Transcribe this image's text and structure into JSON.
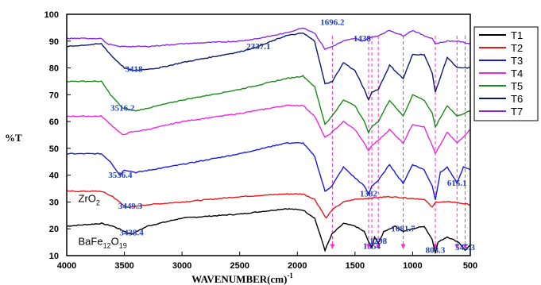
{
  "chart_data": {
    "type": "line",
    "xlabel": "WAVENUMBER(cm)",
    "xlabel_superscript": "-1",
    "ylabel": "%T",
    "xlim": [
      4000,
      500
    ],
    "ylim": [
      10,
      100
    ],
    "x_ticks": [
      4000,
      3500,
      3000,
      2500,
      2000,
      1500,
      1000,
      500
    ],
    "y_ticks": [
      10,
      20,
      30,
      40,
      50,
      60,
      70,
      80,
      90,
      100
    ],
    "grid": false,
    "legend_position": "top-right, outside plot",
    "series": [
      {
        "name": "T1",
        "color": "#000000",
        "points": [
          [
            4000,
            21
          ],
          [
            3700,
            22
          ],
          [
            3600,
            21
          ],
          [
            3470,
            18.5
          ],
          [
            3438,
            18
          ],
          [
            3300,
            21
          ],
          [
            3000,
            24
          ],
          [
            2500,
            25.5
          ],
          [
            2100,
            27.5
          ],
          [
            1950,
            27
          ],
          [
            1850,
            24
          ],
          [
            1760,
            12
          ],
          [
            1700,
            18
          ],
          [
            1600,
            22
          ],
          [
            1500,
            21
          ],
          [
            1420,
            19
          ],
          [
            1380,
            15
          ],
          [
            1354,
            13
          ],
          [
            1330,
            17
          ],
          [
            1298,
            14.5
          ],
          [
            1250,
            19
          ],
          [
            1150,
            21
          ],
          [
            1082,
            19
          ],
          [
            1000,
            20
          ],
          [
            900,
            21
          ],
          [
            830,
            16
          ],
          [
            803,
            11
          ],
          [
            780,
            15
          ],
          [
            700,
            17
          ],
          [
            600,
            15
          ],
          [
            545,
            12
          ],
          [
            500,
            14
          ]
        ]
      },
      {
        "name": "T2",
        "color": "#e3191c",
        "points": [
          [
            4000,
            34
          ],
          [
            3700,
            34
          ],
          [
            3600,
            32
          ],
          [
            3500,
            28.5
          ],
          [
            3449,
            28
          ],
          [
            3300,
            29
          ],
          [
            3000,
            30
          ],
          [
            2500,
            32
          ],
          [
            2100,
            33
          ],
          [
            1950,
            33
          ],
          [
            1850,
            31
          ],
          [
            1750,
            24
          ],
          [
            1700,
            27
          ],
          [
            1600,
            30
          ],
          [
            1500,
            31
          ],
          [
            1200,
            32
          ],
          [
            900,
            31
          ],
          [
            830,
            28
          ],
          [
            800,
            30
          ],
          [
            650,
            30
          ],
          [
            500,
            29
          ]
        ]
      },
      {
        "name": "T3",
        "color": "#1a1adc",
        "points": [
          [
            4000,
            48
          ],
          [
            3700,
            48
          ],
          [
            3620,
            45
          ],
          [
            3540,
            40
          ],
          [
            3500,
            42
          ],
          [
            3400,
            41
          ],
          [
            3000,
            44
          ],
          [
            2500,
            48
          ],
          [
            2100,
            52
          ],
          [
            1950,
            52
          ],
          [
            1850,
            47
          ],
          [
            1760,
            34
          ],
          [
            1700,
            36
          ],
          [
            1600,
            43
          ],
          [
            1500,
            39
          ],
          [
            1420,
            36
          ],
          [
            1382,
            33
          ],
          [
            1354,
            36
          ],
          [
            1298,
            38
          ],
          [
            1200,
            44
          ],
          [
            1120,
            39
          ],
          [
            1082,
            37
          ],
          [
            1000,
            44
          ],
          [
            900,
            42
          ],
          [
            830,
            36
          ],
          [
            803,
            31
          ],
          [
            760,
            41
          ],
          [
            700,
            43
          ],
          [
            615,
            37
          ],
          [
            560,
            43
          ],
          [
            500,
            42
          ]
        ]
      },
      {
        "name": "T4",
        "color": "#e82ad8",
        "points": [
          [
            4000,
            62
          ],
          [
            3700,
            62
          ],
          [
            3620,
            59
          ],
          [
            3516,
            55
          ],
          [
            3450,
            56
          ],
          [
            3300,
            57
          ],
          [
            3000,
            60
          ],
          [
            2500,
            63
          ],
          [
            2100,
            66
          ],
          [
            1950,
            66
          ],
          [
            1850,
            62
          ],
          [
            1760,
            54
          ],
          [
            1700,
            56
          ],
          [
            1600,
            60
          ],
          [
            1500,
            57
          ],
          [
            1420,
            52
          ],
          [
            1382,
            49
          ],
          [
            1354,
            51
          ],
          [
            1298,
            53
          ],
          [
            1200,
            57
          ],
          [
            1082,
            52
          ],
          [
            1000,
            59
          ],
          [
            900,
            58
          ],
          [
            830,
            51
          ],
          [
            803,
            48
          ],
          [
            700,
            56
          ],
          [
            615,
            52
          ],
          [
            500,
            57
          ]
        ]
      },
      {
        "name": "T5",
        "color": "#1a8a1a",
        "points": [
          [
            4000,
            75
          ],
          [
            3700,
            75
          ],
          [
            3620,
            70
          ],
          [
            3516,
            65
          ],
          [
            3400,
            64
          ],
          [
            3000,
            68
          ],
          [
            2500,
            72
          ],
          [
            2100,
            76
          ],
          [
            1950,
            77
          ],
          [
            1850,
            73
          ],
          [
            1760,
            59
          ],
          [
            1700,
            62
          ],
          [
            1600,
            68
          ],
          [
            1500,
            66
          ],
          [
            1420,
            60
          ],
          [
            1382,
            56
          ],
          [
            1354,
            58
          ],
          [
            1298,
            60
          ],
          [
            1200,
            68
          ],
          [
            1082,
            62
          ],
          [
            1000,
            70
          ],
          [
            900,
            68
          ],
          [
            830,
            63
          ],
          [
            803,
            58
          ],
          [
            700,
            66
          ],
          [
            615,
            62
          ],
          [
            500,
            64
          ]
        ]
      },
      {
        "name": "T6",
        "color": "#0d1a6e",
        "points": [
          [
            4000,
            88
          ],
          [
            3700,
            89
          ],
          [
            3600,
            84
          ],
          [
            3500,
            80
          ],
          [
            3418,
            79
          ],
          [
            3200,
            80
          ],
          [
            3000,
            82
          ],
          [
            2500,
            86
          ],
          [
            2337,
            88
          ],
          [
            2100,
            92
          ],
          [
            1950,
            93
          ],
          [
            1850,
            90
          ],
          [
            1760,
            74
          ],
          [
            1696,
            75
          ],
          [
            1600,
            82
          ],
          [
            1500,
            79
          ],
          [
            1420,
            72
          ],
          [
            1382,
            68
          ],
          [
            1354,
            71
          ],
          [
            1298,
            72
          ],
          [
            1200,
            81
          ],
          [
            1082,
            76
          ],
          [
            1000,
            85
          ],
          [
            900,
            85
          ],
          [
            830,
            78
          ],
          [
            803,
            71
          ],
          [
            700,
            84
          ],
          [
            615,
            80
          ],
          [
            500,
            80
          ]
        ]
      },
      {
        "name": "T7",
        "color": "#8a2be2",
        "points": [
          [
            4000,
            91
          ],
          [
            3700,
            91
          ],
          [
            3650,
            89
          ],
          [
            3550,
            88
          ],
          [
            3300,
            88
          ],
          [
            3000,
            89
          ],
          [
            2500,
            90
          ],
          [
            2337,
            91
          ],
          [
            2100,
            93
          ],
          [
            1950,
            95
          ],
          [
            1850,
            93
          ],
          [
            1760,
            87
          ],
          [
            1696,
            88
          ],
          [
            1600,
            90
          ],
          [
            1500,
            91
          ],
          [
            1438,
            90
          ],
          [
            1382,
            91
          ],
          [
            1300,
            92
          ],
          [
            1200,
            94
          ],
          [
            1082,
            92
          ],
          [
            1000,
            94
          ],
          [
            900,
            92
          ],
          [
            830,
            91
          ],
          [
            803,
            89
          ],
          [
            700,
            90
          ],
          [
            615,
            90
          ],
          [
            500,
            89
          ]
        ]
      }
    ],
    "annotations": [
      {
        "text": "3418",
        "x": 3418,
        "y": 78.5
      },
      {
        "text": "2337.1",
        "x": 2337,
        "y": 87
      },
      {
        "text": "1696.2",
        "x": 1696,
        "y": 96
      },
      {
        "text": "1438",
        "x": 1438,
        "y": 90
      },
      {
        "text": "3516.2",
        "x": 3516,
        "y": 64
      },
      {
        "text": "3536.4",
        "x": 3536,
        "y": 39
      },
      {
        "text": "1382",
        "x": 1382,
        "y": 32
      },
      {
        "text": "615.1",
        "x": 615,
        "y": 36
      },
      {
        "text": "3449.3",
        "x": 3449,
        "y": 27.5
      },
      {
        "text": "3438.4",
        "x": 3438,
        "y": 17.5
      },
      {
        "text": "1081.7",
        "x": 1082,
        "y": 19
      },
      {
        "text": "1298",
        "x": 1298,
        "y": 14.5
      },
      {
        "text": "1354",
        "x": 1354,
        "y": 12.5
      },
      {
        "text": "803.3",
        "x": 803,
        "y": 11
      },
      {
        "text": "545.3",
        "x": 545,
        "y": 12
      }
    ],
    "sample_labels": [
      {
        "text": "ZrO",
        "sub": "2",
        "x": 3900,
        "y": 30
      },
      {
        "text": "BaFe",
        "sub": "12",
        "text2": "O",
        "sub2": "19",
        "x": 3900,
        "y": 14
      }
    ],
    "guide_lines_x": [
      1696,
      1382,
      1354,
      1298,
      1082,
      803,
      615,
      545
    ]
  }
}
